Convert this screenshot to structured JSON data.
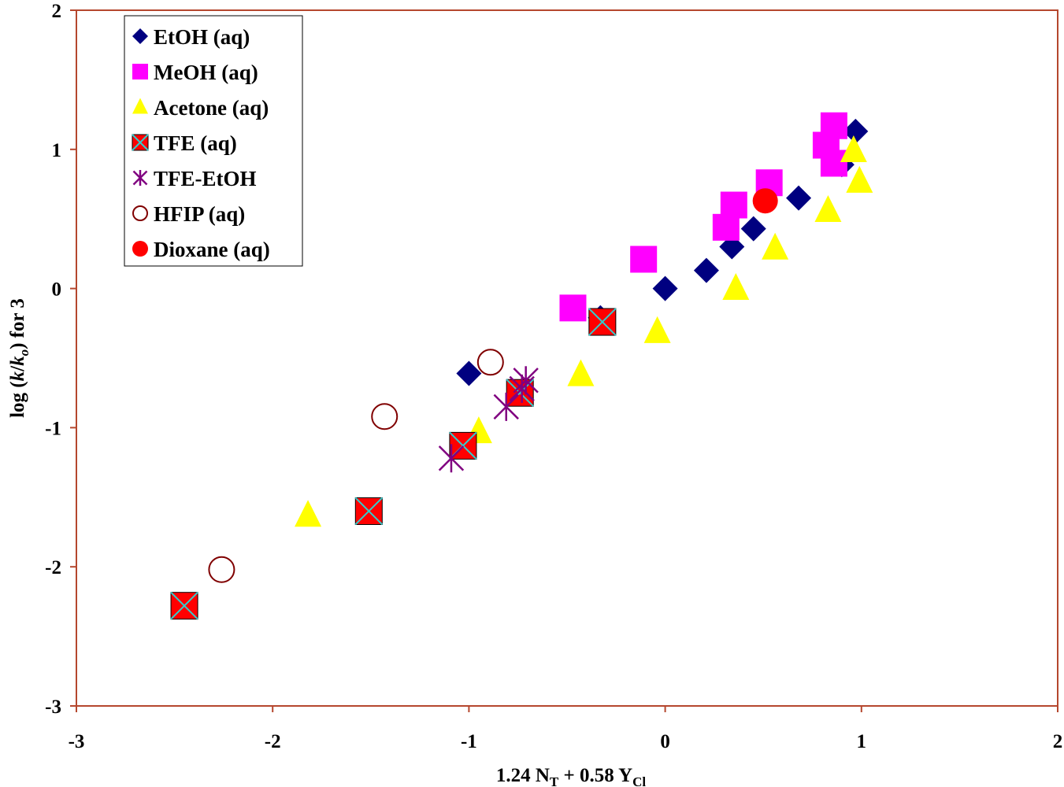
{
  "chart_data": {
    "type": "scatter",
    "title": "",
    "xlabel": {
      "main": "1.24 N",
      "sub1": "T",
      "mid": " + 0.58 Y",
      "sub2": "Cl"
    },
    "ylabel": {
      "pre": "log (",
      "k": "k",
      "slash": "/",
      "ko": "k",
      "ko_sub": "o",
      "post": ") for 3"
    },
    "xlim": [
      -3,
      2
    ],
    "ylim": [
      -3,
      2
    ],
    "xticks": [
      -3,
      -2,
      -1,
      0,
      1,
      2
    ],
    "yticks": [
      -3,
      -2,
      -1,
      0,
      1,
      2
    ],
    "xtick_labels": [
      "-3",
      "-2",
      "-1",
      "0",
      "1",
      "2"
    ],
    "ytick_labels": [
      "-3",
      "-2",
      "-1",
      "0",
      "1",
      "2"
    ],
    "grid": false,
    "legend_position": "top-left",
    "frame_color": "#b5472e",
    "series": [
      {
        "name": "EtOH (aq)",
        "marker": "diamond",
        "color": "#000080",
        "points": [
          [
            0.97,
            1.13
          ],
          [
            0.9,
            0.89
          ],
          [
            0.68,
            0.65
          ],
          [
            0.45,
            0.43
          ],
          [
            0.34,
            0.3
          ],
          [
            0.21,
            0.13
          ],
          [
            0.0,
            0.0
          ],
          [
            -0.33,
            -0.21
          ],
          [
            -1.0,
            -0.61
          ]
        ]
      },
      {
        "name": "MeOH (aq)",
        "marker": "square",
        "color": "#ff00ff",
        "points": [
          [
            0.86,
            1.17
          ],
          [
            0.82,
            1.03
          ],
          [
            0.86,
            0.9
          ],
          [
            0.53,
            0.76
          ],
          [
            0.35,
            0.6
          ],
          [
            0.31,
            0.44
          ],
          [
            -0.11,
            0.21
          ],
          [
            -0.47,
            -0.14
          ]
        ]
      },
      {
        "name": "Acetone (aq)",
        "marker": "triangle",
        "color": "#ffff00",
        "points": [
          [
            0.96,
            0.99
          ],
          [
            0.99,
            0.77
          ],
          [
            0.83,
            0.56
          ],
          [
            0.56,
            0.29
          ],
          [
            0.36,
            0.0
          ],
          [
            -0.04,
            -0.31
          ],
          [
            -0.43,
            -0.62
          ],
          [
            -0.95,
            -1.03
          ],
          [
            -1.82,
            -1.63
          ]
        ]
      },
      {
        "name": "TFE (aq)",
        "marker": "square-x",
        "color": "#ff0000",
        "cross_color": "#33cccc",
        "points": [
          [
            -0.32,
            -0.24
          ],
          [
            -0.74,
            -0.75
          ],
          [
            -1.03,
            -1.13
          ],
          [
            -1.51,
            -1.6
          ],
          [
            -2.45,
            -2.28
          ]
        ]
      },
      {
        "name": "TFE-EtOH",
        "marker": "asterisk",
        "color": "#800080",
        "points": [
          [
            -0.71,
            -0.66
          ],
          [
            -0.73,
            -0.72
          ],
          [
            -0.81,
            -0.85
          ],
          [
            -1.09,
            -1.22
          ]
        ]
      },
      {
        "name": "HFIP (aq)",
        "marker": "open-circle",
        "color": "#800000",
        "points": [
          [
            -0.89,
            -0.53
          ],
          [
            -1.43,
            -0.92
          ],
          [
            -2.26,
            -2.02
          ]
        ]
      },
      {
        "name": "Dioxane (aq)",
        "marker": "filled-circle",
        "color": "#ff0000",
        "points": [
          [
            0.51,
            0.63
          ]
        ]
      }
    ]
  }
}
